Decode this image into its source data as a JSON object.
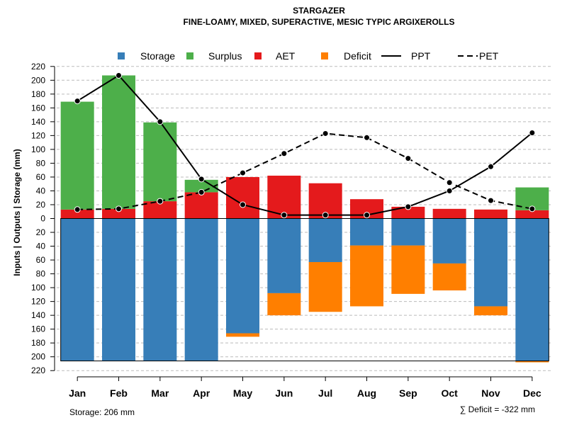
{
  "chart_data": {
    "type": "bar",
    "title": "STARGAZER",
    "subtitle": "FINE-LOAMY, MIXED, SUPERACTIVE, MESIC TYPIC ARGIXEROLLS",
    "ylabel": "Inputs | Outputs | Storage     (mm)",
    "categories": [
      "Jan",
      "Feb",
      "Mar",
      "Apr",
      "May",
      "Jun",
      "Jul",
      "Aug",
      "Sep",
      "Oct",
      "Nov",
      "Dec"
    ],
    "ylim": [
      -220,
      220
    ],
    "ytick_values": [
      220,
      200,
      180,
      160,
      140,
      120,
      100,
      80,
      60,
      40,
      20,
      0,
      -20,
      -40,
      -60,
      -80,
      -100,
      -120,
      -140,
      -160,
      -180,
      -200,
      -220
    ],
    "ytick_labels": [
      "220",
      "200",
      "180",
      "160",
      "140",
      "120",
      "100",
      "80",
      "60",
      "40",
      "20",
      "0",
      "20",
      "40",
      "60",
      "80",
      "100",
      "120",
      "140",
      "160",
      "180",
      "200",
      "220"
    ],
    "legend": [
      "Storage",
      "Surplus",
      "AET",
      "Deficit",
      "PPT",
      "PET"
    ],
    "colors": {
      "storage": "#377EB8",
      "surplus": "#4DAF4A",
      "aet": "#E41A1C",
      "deficit": "#FF7F00",
      "line": "#000000",
      "grid": "#BBBBBB"
    },
    "series": [
      {
        "name": "Storage",
        "values": [
          206,
          206,
          206,
          206,
          166,
          108,
          63,
          39,
          39,
          65,
          127,
          206
        ]
      },
      {
        "name": "Deficit",
        "values": [
          0,
          0,
          0,
          0,
          5,
          32,
          72,
          88,
          70,
          39,
          13,
          2
        ]
      },
      {
        "name": "AET",
        "values": [
          13,
          14,
          25,
          38,
          60,
          62,
          51,
          28,
          17,
          14,
          13,
          12
        ]
      },
      {
        "name": "Surplus",
        "values": [
          156,
          193,
          114,
          18,
          0,
          0,
          0,
          0,
          0,
          0,
          0,
          33
        ]
      },
      {
        "name": "PPT",
        "values": [
          170,
          207,
          140,
          57,
          20,
          5,
          5,
          5,
          17,
          40,
          75,
          124
        ]
      },
      {
        "name": "PET",
        "values": [
          13,
          14,
          25,
          38,
          66,
          94,
          123,
          117,
          87,
          52,
          26,
          14
        ]
      }
    ],
    "storage_capacity": 206
  },
  "footer": {
    "storage_note": "Storage: 206 mm",
    "deficit_note": "∑ Deficit = -322 mm"
  }
}
